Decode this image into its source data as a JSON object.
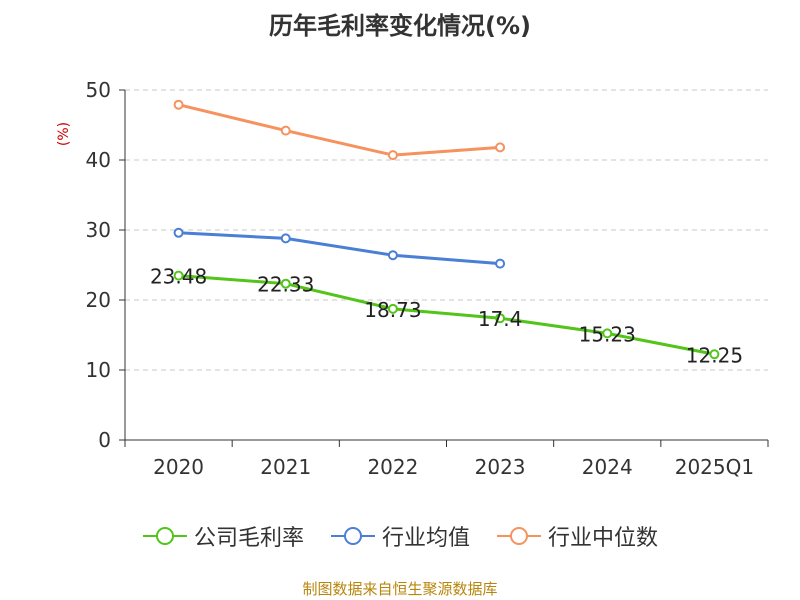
{
  "chart_data": {
    "type": "line",
    "title": "历年毛利率变化情况(%)",
    "ylabel": "(%)",
    "xlabel": "",
    "categories": [
      "2020",
      "2021",
      "2022",
      "2023",
      "2024",
      "2025Q1"
    ],
    "ylim": [
      0,
      50
    ],
    "yticks": [
      0,
      10,
      20,
      30,
      40,
      50
    ],
    "grid": true,
    "legend_position": "bottom",
    "series": [
      {
        "name": "公司毛利率",
        "color": "#52c41a",
        "show_labels": true,
        "values": [
          23.48,
          22.33,
          18.73,
          17.4,
          15.23,
          12.25
        ],
        "labels": [
          "23.48",
          "22.33",
          "18.73",
          "17.4",
          "15.23",
          "12.25"
        ]
      },
      {
        "name": "行业均值",
        "color": "#4a7fd6",
        "show_labels": false,
        "values": [
          29.6,
          28.8,
          26.4,
          25.2,
          null,
          null
        ]
      },
      {
        "name": "行业中位数",
        "color": "#f5925e",
        "show_labels": false,
        "values": [
          47.9,
          44.2,
          40.7,
          41.8,
          null,
          null
        ]
      }
    ]
  },
  "source_text": "制图数据来自恒生聚源数据库"
}
